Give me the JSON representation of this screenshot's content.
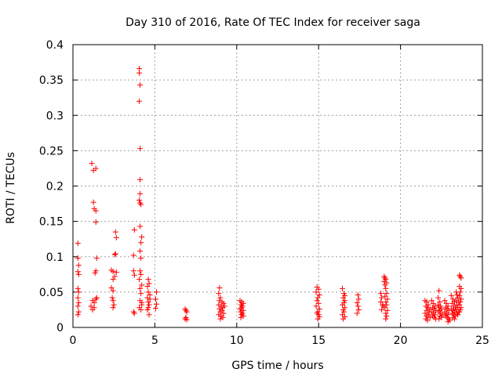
{
  "chart_data": {
    "type": "scatter",
    "title": "Day 310 of 2016, Rate Of TEC Index for receiver saga",
    "xlabel": "GPS time / hours",
    "ylabel": "ROTI / TECUs",
    "xlim": [
      0,
      25
    ],
    "ylim": [
      0,
      0.4
    ],
    "x_ticks": [
      0,
      5,
      10,
      15,
      20,
      25
    ],
    "x_tick_labels": [
      "0",
      "5",
      "10",
      "15",
      "20",
      "25"
    ],
    "y_ticks": [
      0,
      0.05,
      0.1,
      0.15,
      0.2,
      0.25,
      0.3,
      0.35,
      0.4
    ],
    "y_tick_labels": [
      "0",
      "0.05",
      "0.1",
      "0.15",
      "0.2",
      "0.25",
      "0.3",
      "0.35",
      "0.4"
    ],
    "grid": true,
    "marker": "+",
    "color": "#ff0000",
    "series": [
      {
        "name": "ROTI",
        "points": [
          [
            0.3,
            0.119
          ],
          [
            0.3,
            0.098
          ],
          [
            0.35,
            0.088
          ],
          [
            0.3,
            0.079
          ],
          [
            0.35,
            0.075
          ],
          [
            0.3,
            0.055
          ],
          [
            0.35,
            0.05
          ],
          [
            0.3,
            0.042
          ],
          [
            0.35,
            0.035
          ],
          [
            0.3,
            0.03
          ],
          [
            0.35,
            0.022
          ],
          [
            0.3,
            0.018
          ],
          [
            1.15,
            0.232
          ],
          [
            1.25,
            0.222
          ],
          [
            1.4,
            0.225
          ],
          [
            1.25,
            0.177
          ],
          [
            1.3,
            0.168
          ],
          [
            1.4,
            0.165
          ],
          [
            1.4,
            0.149
          ],
          [
            1.45,
            0.098
          ],
          [
            1.4,
            0.08
          ],
          [
            1.35,
            0.077
          ],
          [
            1.45,
            0.042
          ],
          [
            1.4,
            0.04
          ],
          [
            1.2,
            0.038
          ],
          [
            1.3,
            0.035
          ],
          [
            1.1,
            0.03
          ],
          [
            1.2,
            0.025
          ],
          [
            1.3,
            0.028
          ],
          [
            2.6,
            0.135
          ],
          [
            2.65,
            0.127
          ],
          [
            2.6,
            0.104
          ],
          [
            2.55,
            0.103
          ],
          [
            2.35,
            0.081
          ],
          [
            2.45,
            0.079
          ],
          [
            2.65,
            0.078
          ],
          [
            2.55,
            0.072
          ],
          [
            2.45,
            0.068
          ],
          [
            2.35,
            0.056
          ],
          [
            2.45,
            0.052
          ],
          [
            2.4,
            0.042
          ],
          [
            2.45,
            0.038
          ],
          [
            2.5,
            0.032
          ],
          [
            2.45,
            0.028
          ],
          [
            3.75,
            0.138
          ],
          [
            3.7,
            0.102
          ],
          [
            3.7,
            0.08
          ],
          [
            3.75,
            0.074
          ],
          [
            3.7,
            0.022
          ],
          [
            3.75,
            0.02
          ],
          [
            4.05,
            0.366
          ],
          [
            4.05,
            0.36
          ],
          [
            4.1,
            0.343
          ],
          [
            4.05,
            0.32
          ],
          [
            4.1,
            0.253
          ],
          [
            4.1,
            0.209
          ],
          [
            4.1,
            0.189
          ],
          [
            4.05,
            0.18
          ],
          [
            4.1,
            0.176
          ],
          [
            4.15,
            0.174
          ],
          [
            4.1,
            0.143
          ],
          [
            4.2,
            0.128
          ],
          [
            4.15,
            0.12
          ],
          [
            4.1,
            0.108
          ],
          [
            4.15,
            0.098
          ],
          [
            4.1,
            0.08
          ],
          [
            4.15,
            0.075
          ],
          [
            4.05,
            0.068
          ],
          [
            4.2,
            0.06
          ],
          [
            4.1,
            0.055
          ],
          [
            4.15,
            0.048
          ],
          [
            4.1,
            0.038
          ],
          [
            4.2,
            0.032
          ],
          [
            4.05,
            0.028
          ],
          [
            4.15,
            0.025
          ],
          [
            4.2,
            0.035
          ],
          [
            4.6,
            0.068
          ],
          [
            4.65,
            0.062
          ],
          [
            4.55,
            0.058
          ],
          [
            4.6,
            0.05
          ],
          [
            4.7,
            0.046
          ],
          [
            4.55,
            0.042
          ],
          [
            4.6,
            0.036
          ],
          [
            4.65,
            0.032
          ],
          [
            4.6,
            0.028
          ],
          [
            4.55,
            0.025
          ],
          [
            4.65,
            0.018
          ],
          [
            4.7,
            0.04
          ],
          [
            5.1,
            0.05
          ],
          [
            5.05,
            0.04
          ],
          [
            5.1,
            0.033
          ],
          [
            5.05,
            0.027
          ],
          [
            6.85,
            0.026
          ],
          [
            6.9,
            0.024
          ],
          [
            6.95,
            0.022
          ],
          [
            6.9,
            0.014
          ],
          [
            6.85,
            0.012
          ],
          [
            6.95,
            0.011
          ],
          [
            8.95,
            0.056
          ],
          [
            8.9,
            0.048
          ],
          [
            9.0,
            0.042
          ],
          [
            8.95,
            0.038
          ],
          [
            9.1,
            0.036
          ],
          [
            9.2,
            0.034
          ],
          [
            8.9,
            0.032
          ],
          [
            9.05,
            0.03
          ],
          [
            9.15,
            0.028
          ],
          [
            8.95,
            0.026
          ],
          [
            9.1,
            0.024
          ],
          [
            9.0,
            0.022
          ],
          [
            9.2,
            0.02
          ],
          [
            8.9,
            0.018
          ],
          [
            9.05,
            0.016
          ],
          [
            9.15,
            0.014
          ],
          [
            9.0,
            0.012
          ],
          [
            9.25,
            0.03
          ],
          [
            10.2,
            0.038
          ],
          [
            10.3,
            0.036
          ],
          [
            10.4,
            0.034
          ],
          [
            10.25,
            0.032
          ],
          [
            10.35,
            0.03
          ],
          [
            10.3,
            0.028
          ],
          [
            10.2,
            0.026
          ],
          [
            10.4,
            0.024
          ],
          [
            10.25,
            0.022
          ],
          [
            10.35,
            0.02
          ],
          [
            10.3,
            0.018
          ],
          [
            10.4,
            0.016
          ],
          [
            10.25,
            0.014
          ],
          [
            14.9,
            0.057
          ],
          [
            15.0,
            0.054
          ],
          [
            14.85,
            0.05
          ],
          [
            15.05,
            0.046
          ],
          [
            14.95,
            0.042
          ],
          [
            14.9,
            0.038
          ],
          [
            15.0,
            0.034
          ],
          [
            14.85,
            0.03
          ],
          [
            15.05,
            0.026
          ],
          [
            14.95,
            0.022
          ],
          [
            14.9,
            0.02
          ],
          [
            15.0,
            0.018
          ],
          [
            15.05,
            0.015
          ],
          [
            14.95,
            0.012
          ],
          [
            16.45,
            0.055
          ],
          [
            16.55,
            0.048
          ],
          [
            16.6,
            0.045
          ],
          [
            16.5,
            0.042
          ],
          [
            16.6,
            0.038
          ],
          [
            16.55,
            0.035
          ],
          [
            16.45,
            0.032
          ],
          [
            16.6,
            0.028
          ],
          [
            16.5,
            0.025
          ],
          [
            16.55,
            0.022
          ],
          [
            16.45,
            0.018
          ],
          [
            16.6,
            0.015
          ],
          [
            16.5,
            0.012
          ],
          [
            17.4,
            0.046
          ],
          [
            17.45,
            0.04
          ],
          [
            17.35,
            0.035
          ],
          [
            17.4,
            0.03
          ],
          [
            17.45,
            0.025
          ],
          [
            17.35,
            0.02
          ],
          [
            18.8,
            0.048
          ],
          [
            18.85,
            0.042
          ],
          [
            18.8,
            0.036
          ],
          [
            18.9,
            0.032
          ],
          [
            18.85,
            0.025
          ],
          [
            18.95,
            0.03
          ],
          [
            19.0,
            0.072
          ],
          [
            19.05,
            0.07
          ],
          [
            19.1,
            0.068
          ],
          [
            19.0,
            0.065
          ],
          [
            19.15,
            0.063
          ],
          [
            19.05,
            0.06
          ],
          [
            19.1,
            0.055
          ],
          [
            19.15,
            0.048
          ],
          [
            19.05,
            0.044
          ],
          [
            19.2,
            0.04
          ],
          [
            19.1,
            0.036
          ],
          [
            19.15,
            0.032
          ],
          [
            19.05,
            0.028
          ],
          [
            19.2,
            0.024
          ],
          [
            19.1,
            0.02
          ],
          [
            19.15,
            0.016
          ],
          [
            19.1,
            0.012
          ],
          [
            21.5,
            0.038
          ],
          [
            21.6,
            0.036
          ],
          [
            21.7,
            0.032
          ],
          [
            21.55,
            0.03
          ],
          [
            21.65,
            0.028
          ],
          [
            21.8,
            0.026
          ],
          [
            21.6,
            0.024
          ],
          [
            21.75,
            0.022
          ],
          [
            21.5,
            0.02
          ],
          [
            21.7,
            0.018
          ],
          [
            21.6,
            0.016
          ],
          [
            21.8,
            0.014
          ],
          [
            21.55,
            0.012
          ],
          [
            21.65,
            0.01
          ],
          [
            21.9,
            0.038
          ],
          [
            22.0,
            0.034
          ],
          [
            22.1,
            0.03
          ],
          [
            21.95,
            0.028
          ],
          [
            22.05,
            0.026
          ],
          [
            22.15,
            0.024
          ],
          [
            21.9,
            0.022
          ],
          [
            22.0,
            0.02
          ],
          [
            22.1,
            0.018
          ],
          [
            21.95,
            0.016
          ],
          [
            22.05,
            0.014
          ],
          [
            22.15,
            0.012
          ],
          [
            22.3,
            0.042
          ],
          [
            22.35,
            0.052
          ],
          [
            22.4,
            0.036
          ],
          [
            22.3,
            0.032
          ],
          [
            22.45,
            0.03
          ],
          [
            22.35,
            0.028
          ],
          [
            22.5,
            0.026
          ],
          [
            22.4,
            0.024
          ],
          [
            22.3,
            0.022
          ],
          [
            22.45,
            0.02
          ],
          [
            22.55,
            0.018
          ],
          [
            22.4,
            0.016
          ],
          [
            22.5,
            0.014
          ],
          [
            22.35,
            0.012
          ],
          [
            22.7,
            0.038
          ],
          [
            22.8,
            0.034
          ],
          [
            22.9,
            0.03
          ],
          [
            22.75,
            0.028
          ],
          [
            22.85,
            0.026
          ],
          [
            22.95,
            0.024
          ],
          [
            22.7,
            0.022
          ],
          [
            22.8,
            0.02
          ],
          [
            22.9,
            0.018
          ],
          [
            22.75,
            0.016
          ],
          [
            22.85,
            0.014
          ],
          [
            22.95,
            0.012
          ],
          [
            23.0,
            0.01
          ],
          [
            22.9,
            0.008
          ],
          [
            23.1,
            0.045
          ],
          [
            23.2,
            0.04
          ],
          [
            23.3,
            0.036
          ],
          [
            23.15,
            0.034
          ],
          [
            23.25,
            0.03
          ],
          [
            23.35,
            0.028
          ],
          [
            23.1,
            0.026
          ],
          [
            23.2,
            0.024
          ],
          [
            23.3,
            0.022
          ],
          [
            23.15,
            0.02
          ],
          [
            23.25,
            0.018
          ],
          [
            23.35,
            0.016
          ],
          [
            23.2,
            0.014
          ],
          [
            23.3,
            0.012
          ],
          [
            23.4,
            0.05
          ],
          [
            23.45,
            0.046
          ],
          [
            23.5,
            0.042
          ],
          [
            23.4,
            0.038
          ],
          [
            23.55,
            0.036
          ],
          [
            23.45,
            0.032
          ],
          [
            23.5,
            0.028
          ],
          [
            23.4,
            0.025
          ],
          [
            23.55,
            0.022
          ],
          [
            23.45,
            0.02
          ],
          [
            23.5,
            0.018
          ],
          [
            23.6,
            0.074
          ],
          [
            23.65,
            0.072
          ],
          [
            23.7,
            0.07
          ],
          [
            23.6,
            0.058
          ],
          [
            23.7,
            0.055
          ],
          [
            23.65,
            0.05
          ],
          [
            23.6,
            0.045
          ],
          [
            23.7,
            0.04
          ],
          [
            23.65,
            0.036
          ],
          [
            23.6,
            0.032
          ],
          [
            23.7,
            0.028
          ],
          [
            23.65,
            0.025
          ],
          [
            23.6,
            0.022
          ]
        ]
      }
    ]
  }
}
